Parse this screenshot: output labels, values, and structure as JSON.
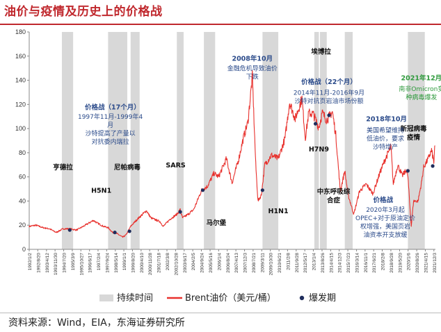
{
  "page_title": "油价与疫情及历史上的价格战",
  "source": "资料来源：Wind，EIA，东海证券研究所",
  "colors": {
    "accent": "#c0282d",
    "line": "#e8302c",
    "shade": "#d8d8d8",
    "dot": "#1f2d5c",
    "label_blue": "#2a4a8a",
    "label_green": "#2e9a3c"
  },
  "chart_data": {
    "type": "line",
    "title": "",
    "ylabel": "",
    "xlabel": "",
    "ylim": [
      0,
      180
    ],
    "yticks": [
      0,
      20,
      40,
      60,
      80,
      100,
      120,
      140,
      160,
      180
    ],
    "xlim": [
      "1992/1/2",
      "2022/1/14"
    ],
    "xtick_labels": [
      "1992/1/2",
      "1992/8/20",
      "1993/4/12",
      "1993/11/30",
      "1994/7/20",
      "1995/3/9",
      "1995/10/27",
      "1996/6/17",
      "1997/2/4",
      "1997/9/24",
      "1998/5/14",
      "1999/1/1",
      "1999/8/20",
      "2000/4/10",
      "2000/11/28",
      "2001/7/18",
      "2002/3/8",
      "2002/10/28",
      "2003/6/17",
      "2004/2/5",
      "2004/9/24",
      "2005/5/16",
      "2006/1/4",
      "2006/8/24",
      "2007/4/13",
      "2007/12/3",
      "2008/7/21",
      "2009/3/11",
      "2009/10/30",
      "2010/6/21",
      "2011/2/8",
      "2011/9/28",
      "2012/5/17",
      "2013/1/4",
      "2013/8/26",
      "2014/4/15",
      "2014/12/3",
      "2015/7/23",
      "2016/3/14",
      "2016/11/1",
      "2017/6/21",
      "2018/2/8",
      "2018/9/28",
      "2019/5/20",
      "2020/1/6",
      "2020/8/26",
      "2021/4/15",
      "2021/12/3"
    ],
    "legend": [
      {
        "name": "持续时间",
        "kind": "bar"
      },
      {
        "name": "Brent油价（美元/桶）",
        "kind": "line"
      },
      {
        "name": "爆发期",
        "kind": "dot"
      }
    ],
    "series": [
      {
        "name": "Brent油价（美元/桶）",
        "x": [
          "1992/1",
          "1992/7",
          "1993/1",
          "1993/7",
          "1994/1",
          "1994/7",
          "1995/1",
          "1995/7",
          "1996/1",
          "1996/10",
          "1997/1",
          "1997/7",
          "1997/11",
          "1998/3",
          "1998/7",
          "1998/12",
          "1999/3",
          "1999/7",
          "2000/1",
          "2000/9",
          "2001/1",
          "2001/9",
          "2001/12",
          "2002/6",
          "2002/12",
          "2003/3",
          "2003/5",
          "2003/10",
          "2004/3",
          "2004/10",
          "2005/3",
          "2005/9",
          "2006/1",
          "2006/8",
          "2007/1",
          "2007/7",
          "2007/11",
          "2008/3",
          "2008/7",
          "2008/10",
          "2008/12",
          "2009/3",
          "2009/6",
          "2009/12",
          "2010/6",
          "2010/12",
          "2011/4",
          "2011/9",
          "2012/3",
          "2012/6",
          "2012/9",
          "2013/1",
          "2013/6",
          "2013/9",
          "2014/1",
          "2014/6",
          "2014/9",
          "2014/12",
          "2015/1",
          "2015/5",
          "2015/8",
          "2016/1",
          "2016/6",
          "2016/12",
          "2017/6",
          "2017/12",
          "2018/5",
          "2018/10",
          "2018/12",
          "2019/4",
          "2019/8",
          "2019/12",
          "2020/1",
          "2020/4",
          "2020/6",
          "2020/10",
          "2021/1",
          "2021/3",
          "2021/7",
          "2021/10",
          "2021/12",
          "2022/1"
        ],
        "values": [
          19,
          20,
          18,
          17,
          14,
          17,
          17,
          16,
          19,
          24,
          22,
          19,
          18,
          14,
          13,
          10,
          12,
          19,
          25,
          32,
          26,
          23,
          19,
          25,
          29,
          33,
          26,
          29,
          33,
          49,
          52,
          63,
          60,
          75,
          55,
          75,
          92,
          105,
          143,
          70,
          40,
          45,
          70,
          78,
          75,
          92,
          122,
          108,
          125,
          92,
          113,
          112,
          101,
          113,
          107,
          114,
          95,
          60,
          48,
          65,
          45,
          29,
          48,
          54,
          46,
          63,
          75,
          85,
          54,
          70,
          61,
          66,
          60,
          19,
          40,
          40,
          55,
          68,
          75,
          82,
          72,
          86
        ]
      }
    ],
    "shaded_periods": [
      {
        "start": "1994/6",
        "end": "1995/4"
      },
      {
        "start": "1997/11",
        "end": "1999/4"
      },
      {
        "start": "1999/7",
        "end": "2000/3"
      },
      {
        "start": "2002/12",
        "end": "2003/6"
      },
      {
        "start": "2004/12",
        "end": "2005/10"
      },
      {
        "start": "2009/4",
        "end": "2010/6"
      },
      {
        "start": "2013/2",
        "end": "2013/6"
      },
      {
        "start": "2013/7",
        "end": "2014/1"
      },
      {
        "start": "2015/5",
        "end": "2015/12"
      },
      {
        "start": "2020/1",
        "end": "2021/4"
      }
    ],
    "outbreak_points": [
      {
        "date": "1995/1",
        "value": 16
      },
      {
        "date": "1998/5",
        "value": 14
      },
      {
        "date": "1999/6",
        "value": 15
      },
      {
        "date": "2003/3",
        "value": 31
      },
      {
        "date": "2004/11",
        "value": 49
      },
      {
        "date": "2009/4",
        "value": 49
      },
      {
        "date": "2013/3",
        "value": 104
      },
      {
        "date": "2014/3",
        "value": 111
      },
      {
        "date": "2020/1",
        "value": 65
      },
      {
        "date": "2021/11",
        "value": 69
      }
    ],
    "annotations": [
      {
        "lines": [
          "亨德拉"
        ],
        "style": "black",
        "x": "1994/7",
        "y": 66
      },
      {
        "lines": [
          "H5N1"
        ],
        "style": "black",
        "x": "1997/5",
        "y": 47
      },
      {
        "lines": [
          "尼帕病毒"
        ],
        "style": "black",
        "x": "1999/4",
        "y": 66
      },
      {
        "lines": [
          "SARS"
        ],
        "style": "black",
        "x": "2002/11",
        "y": 68
      },
      {
        "lines": [
          "马尔堡"
        ],
        "style": "black",
        "x": "2005/11",
        "y": 20
      },
      {
        "lines": [
          "H1N1"
        ],
        "style": "black",
        "x": "2010/6",
        "y": 30
      },
      {
        "lines": [
          "埃博拉"
        ],
        "style": "black",
        "x": "2013/8",
        "y": 162
      },
      {
        "lines": [
          "H7N9"
        ],
        "style": "black",
        "x": "2013/6",
        "y": 81
      },
      {
        "lines": [
          "中东呼吸综",
          "合症"
        ],
        "style": "black",
        "x": "2014/7",
        "y": 46
      },
      {
        "lines": [
          "新冠病毒",
          "疫情"
        ],
        "style": "black",
        "x": "2020/6",
        "y": 98
      },
      {
        "lines": [
          "价格战（17个月）"
        ],
        "style": "bluebold",
        "x": "1998/3",
        "y": 116
      },
      {
        "lines": [
          "1997年11月-1999年4",
          "月",
          "沙特提高了产量以",
          "对抗委内瑞拉"
        ],
        "style": "blue",
        "x": "1998/1",
        "y": 108
      },
      {
        "lines": [
          "2008年10月"
        ],
        "style": "bluebold",
        "x": "2008/7",
        "y": 156
      },
      {
        "lines": [
          "金融危机导致油价",
          "下跌"
        ],
        "style": "blue",
        "x": "2008/7",
        "y": 148
      },
      {
        "lines": [
          "价格战（22个月）"
        ],
        "style": "bluebold",
        "x": "2014/3",
        "y": 137
      },
      {
        "lines": [
          "2014年11月-2016年9月",
          "沙特对抗页岩油市场份额"
        ],
        "style": "blue",
        "x": "2014/3",
        "y": 128
      },
      {
        "lines": [
          "2018年10月"
        ],
        "style": "bluebold",
        "x": "2018/6",
        "y": 106
      },
      {
        "lines": [
          "美国希望维持",
          "低油价，要求",
          "沙特增产"
        ],
        "style": "blue",
        "x": "2018/5",
        "y": 97
      },
      {
        "lines": [
          "价格战"
        ],
        "style": "bluebold",
        "x": "2018/3",
        "y": 39
      },
      {
        "lines": [
          "2020年3月起",
          "OPEC+对于原油定价",
          "权增强，美国页岩",
          "油资本开支放缓"
        ],
        "style": "blue",
        "x": "2018/5",
        "y": 31
      },
      {
        "lines": [
          "2021年12月"
        ],
        "style": "greenbold",
        "x": "2021/1",
        "y": 140
      },
      {
        "lines": [
          "南非Omicron变",
          "种病毒爆发"
        ],
        "style": "green",
        "x": "2021/1",
        "y": 131
      }
    ]
  }
}
